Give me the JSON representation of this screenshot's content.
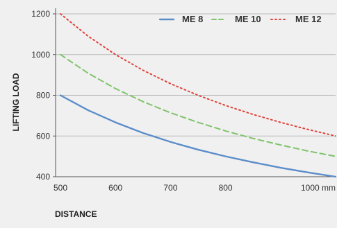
{
  "chart_data": {
    "type": "line",
    "title": "",
    "xlabel": "DISTANCE",
    "ylabel": "LIFTING LOAD",
    "xlim": [
      500,
      1000
    ],
    "ylim": [
      400,
      1200
    ],
    "x_ticks": [
      500,
      600,
      700,
      800,
      1000
    ],
    "x_tick_labels": [
      "500",
      "600",
      "700",
      "800",
      "1000 mm"
    ],
    "y_ticks": [
      400,
      600,
      800,
      1000,
      1200
    ],
    "y_tick_labels": [
      "400",
      "600",
      "800",
      "1000",
      "1200"
    ],
    "grid": "horizontal",
    "legend_position": "top",
    "x": [
      500,
      550,
      600,
      650,
      700,
      750,
      800,
      850,
      900,
      950,
      1000
    ],
    "series": [
      {
        "name": "ME 8",
        "color": "#5b8dc9",
        "style": "solid",
        "values": [
          800,
          727,
          667,
          615,
          571,
          533,
          500,
          471,
          444,
          421,
          400
        ]
      },
      {
        "name": "ME 10",
        "color": "#7fc36a",
        "style": "dashed",
        "values": [
          1000,
          909,
          833,
          769,
          714,
          667,
          625,
          588,
          556,
          526,
          500
        ]
      },
      {
        "name": "ME 12",
        "color": "#e0413a",
        "style": "dotted",
        "values": [
          1200,
          1091,
          1000,
          923,
          857,
          800,
          750,
          706,
          667,
          632,
          600
        ]
      }
    ]
  }
}
